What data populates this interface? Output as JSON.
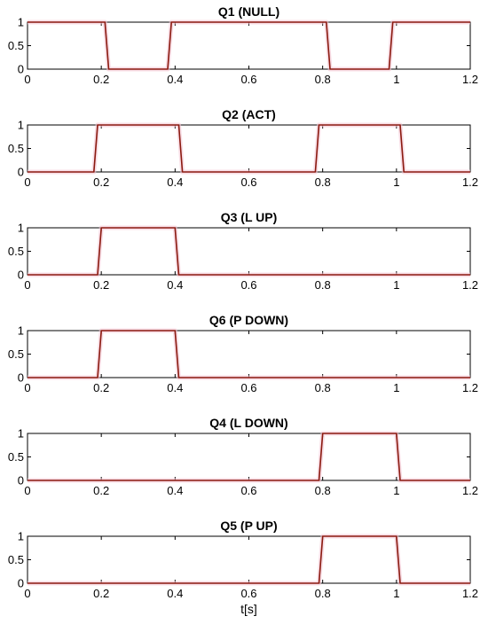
{
  "chart_data": [
    {
      "type": "line",
      "title": "Q1 (NULL)",
      "xlabel": "",
      "ylabel": "",
      "xlim": [
        0,
        1.2
      ],
      "ylim": [
        0,
        1
      ],
      "xticks": [
        "0",
        "0.2",
        "0.4",
        "0.6",
        "0.8",
        "1",
        "1.2"
      ],
      "yticks": [
        "0",
        "0.5",
        "1"
      ],
      "grid": false,
      "series": [
        {
          "x": [
            0,
            0.21,
            0.22,
            0.38,
            0.39,
            0.81,
            0.82,
            0.98,
            0.99,
            1.2
          ],
          "y": [
            1,
            1,
            0,
            0,
            1,
            1,
            0,
            0,
            1,
            1
          ]
        }
      ]
    },
    {
      "type": "line",
      "title": "Q2 (ACT)",
      "xlabel": "",
      "ylabel": "",
      "xlim": [
        0,
        1.2
      ],
      "ylim": [
        0,
        1
      ],
      "xticks": [
        "0",
        "0.2",
        "0.4",
        "0.6",
        "0.8",
        "1",
        "1.2"
      ],
      "yticks": [
        "0",
        "0.5",
        "1"
      ],
      "grid": false,
      "series": [
        {
          "x": [
            0,
            0.18,
            0.19,
            0.41,
            0.42,
            0.78,
            0.79,
            1.01,
            1.02,
            1.2
          ],
          "y": [
            0,
            0,
            1,
            1,
            0,
            0,
            1,
            1,
            0,
            0
          ]
        }
      ]
    },
    {
      "type": "line",
      "title": "Q3 (L UP)",
      "xlabel": "",
      "ylabel": "",
      "xlim": [
        0,
        1.2
      ],
      "ylim": [
        0,
        1
      ],
      "xticks": [
        "0",
        "0.2",
        "0.4",
        "0.6",
        "0.8",
        "1",
        "1.2"
      ],
      "yticks": [
        "0",
        "0.5",
        "1"
      ],
      "grid": false,
      "series": [
        {
          "x": [
            0,
            0.19,
            0.2,
            0.4,
            0.41,
            1.2
          ],
          "y": [
            0,
            0,
            1,
            1,
            0,
            0
          ]
        }
      ]
    },
    {
      "type": "line",
      "title": "Q6 (P DOWN)",
      "xlabel": "",
      "ylabel": "",
      "xlim": [
        0,
        1.2
      ],
      "ylim": [
        0,
        1
      ],
      "xticks": [
        "0",
        "0.2",
        "0.4",
        "0.6",
        "0.8",
        "1",
        "1.2"
      ],
      "yticks": [
        "0",
        "0.5",
        "1"
      ],
      "grid": false,
      "series": [
        {
          "x": [
            0,
            0.19,
            0.2,
            0.4,
            0.41,
            1.2
          ],
          "y": [
            0,
            0,
            1,
            1,
            0,
            0
          ]
        }
      ]
    },
    {
      "type": "line",
      "title": "Q4 (L DOWN)",
      "xlabel": "",
      "ylabel": "",
      "xlim": [
        0,
        1.2
      ],
      "ylim": [
        0,
        1
      ],
      "xticks": [
        "0",
        "0.2",
        "0.4",
        "0.6",
        "0.8",
        "1",
        "1.2"
      ],
      "yticks": [
        "0",
        "0.5",
        "1"
      ],
      "grid": false,
      "series": [
        {
          "x": [
            0,
            0.79,
            0.8,
            1.0,
            1.01,
            1.2
          ],
          "y": [
            0,
            0,
            1,
            1,
            0,
            0
          ]
        }
      ]
    },
    {
      "type": "line",
      "title": "Q5 (P UP)",
      "xlabel": "t[s]",
      "ylabel": "",
      "xlim": [
        0,
        1.2
      ],
      "ylim": [
        0,
        1
      ],
      "xticks": [
        "0",
        "0.2",
        "0.4",
        "0.6",
        "0.8",
        "1",
        "1.2"
      ],
      "yticks": [
        "0",
        "0.5",
        "1"
      ],
      "grid": false,
      "series": [
        {
          "x": [
            0,
            0.79,
            0.8,
            1.0,
            1.01,
            1.2
          ],
          "y": [
            0,
            0,
            1,
            1,
            0,
            0
          ]
        }
      ]
    }
  ],
  "colors": {
    "trace": "#8b1a10",
    "trace_glow": "#f4c6d3",
    "axes": "#000000",
    "background": "#ffffff"
  }
}
